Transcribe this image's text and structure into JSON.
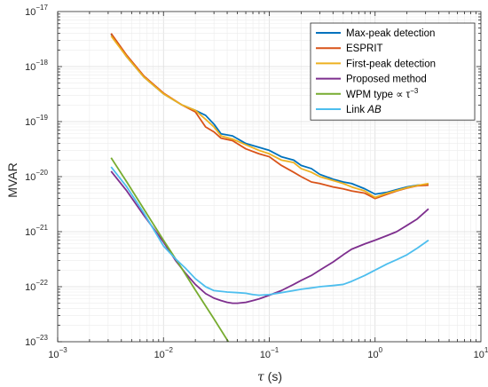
{
  "chart_data": {
    "type": "line",
    "xlabel": "τ (s)",
    "ylabel": "MVAR",
    "xscale": "log",
    "yscale": "log",
    "xlim": [
      0.001,
      10
    ],
    "ylim": [
      1e-23,
      1e-17
    ],
    "grid": true,
    "legend_position": "top-right",
    "x_ticks": [
      {
        "mantissa": "10",
        "exp": "−3",
        "value": 0.001
      },
      {
        "mantissa": "10",
        "exp": "−2",
        "value": 0.01
      },
      {
        "mantissa": "10",
        "exp": "−1",
        "value": 0.1
      },
      {
        "mantissa": "10",
        "exp": "0",
        "value": 1
      },
      {
        "mantissa": "10",
        "exp": "1",
        "value": 10
      }
    ],
    "y_ticks": [
      {
        "mantissa": "10",
        "exp": "−23",
        "value": 1e-23
      },
      {
        "mantissa": "10",
        "exp": "−22",
        "value": 1e-22
      },
      {
        "mantissa": "10",
        "exp": "−21",
        "value": 1e-21
      },
      {
        "mantissa": "10",
        "exp": "−20",
        "value": 1e-20
      },
      {
        "mantissa": "10",
        "exp": "−19",
        "value": 1e-19
      },
      {
        "mantissa": "10",
        "exp": "−18",
        "value": 1e-18
      },
      {
        "mantissa": "10",
        "exp": "−17",
        "value": 1e-17
      }
    ],
    "series": [
      {
        "name": "Max-peak detection",
        "color": "#0072BD",
        "points": [
          [
            0.0032,
            3.9e-18
          ],
          [
            0.0045,
            1.5e-18
          ],
          [
            0.0065,
            6.5e-19
          ],
          [
            0.01,
            3.2e-19
          ],
          [
            0.015,
            2e-19
          ],
          [
            0.02,
            1.6e-19
          ],
          [
            0.025,
            1.3e-19
          ],
          [
            0.03,
            9e-20
          ],
          [
            0.035,
            6e-20
          ],
          [
            0.045,
            5.5e-20
          ],
          [
            0.06,
            4e-20
          ],
          [
            0.08,
            3.4e-20
          ],
          [
            0.1,
            3e-20
          ],
          [
            0.13,
            2.3e-20
          ],
          [
            0.17,
            2e-20
          ],
          [
            0.2,
            1.6e-20
          ],
          [
            0.25,
            1.4e-20
          ],
          [
            0.3,
            1.1e-20
          ],
          [
            0.4,
            9e-21
          ],
          [
            0.5,
            8e-21
          ],
          [
            0.6,
            7.5e-21
          ],
          [
            0.8,
            6e-21
          ],
          [
            1.0,
            4.8e-21
          ],
          [
            1.3,
            5.2e-21
          ],
          [
            1.6,
            5.8e-21
          ],
          [
            2.0,
            6.5e-21
          ],
          [
            2.5,
            7e-21
          ],
          [
            3.2,
            7.2e-21
          ]
        ]
      },
      {
        "name": "ESPRIT",
        "color": "#D95319",
        "points": [
          [
            0.0032,
            4e-18
          ],
          [
            0.0045,
            1.6e-18
          ],
          [
            0.0065,
            6.8e-19
          ],
          [
            0.01,
            3.3e-19
          ],
          [
            0.015,
            2e-19
          ],
          [
            0.02,
            1.5e-19
          ],
          [
            0.025,
            8e-20
          ],
          [
            0.03,
            6.5e-20
          ],
          [
            0.035,
            5e-20
          ],
          [
            0.045,
            4.5e-20
          ],
          [
            0.06,
            3.2e-20
          ],
          [
            0.08,
            2.6e-20
          ],
          [
            0.1,
            2.3e-20
          ],
          [
            0.13,
            1.6e-20
          ],
          [
            0.17,
            1.2e-20
          ],
          [
            0.2,
            1e-20
          ],
          [
            0.25,
            8e-21
          ],
          [
            0.3,
            7.5e-21
          ],
          [
            0.4,
            6.5e-21
          ],
          [
            0.5,
            6e-21
          ],
          [
            0.6,
            5.5e-21
          ],
          [
            0.8,
            5e-21
          ],
          [
            1.0,
            4e-21
          ],
          [
            1.3,
            4.8e-21
          ],
          [
            1.6,
            5.5e-21
          ],
          [
            2.0,
            6.2e-21
          ],
          [
            2.5,
            6.8e-21
          ],
          [
            3.2,
            7e-21
          ]
        ]
      },
      {
        "name": "First-peak detection",
        "color": "#EDB120",
        "points": [
          [
            0.0032,
            3.6e-18
          ],
          [
            0.0045,
            1.5e-18
          ],
          [
            0.0065,
            6.5e-19
          ],
          [
            0.01,
            3.2e-19
          ],
          [
            0.015,
            2e-19
          ],
          [
            0.02,
            1.6e-19
          ],
          [
            0.025,
            1.1e-19
          ],
          [
            0.03,
            8e-20
          ],
          [
            0.035,
            5.5e-20
          ],
          [
            0.045,
            4.8e-20
          ],
          [
            0.06,
            3.8e-20
          ],
          [
            0.08,
            3e-20
          ],
          [
            0.1,
            2.6e-20
          ],
          [
            0.13,
            2e-20
          ],
          [
            0.17,
            1.8e-20
          ],
          [
            0.2,
            1.4e-20
          ],
          [
            0.25,
            1.2e-20
          ],
          [
            0.3,
            1e-20
          ],
          [
            0.4,
            8.5e-21
          ],
          [
            0.5,
            7.5e-21
          ],
          [
            0.6,
            6.5e-21
          ],
          [
            0.8,
            5.5e-21
          ],
          [
            1.0,
            4.2e-21
          ],
          [
            1.3,
            5e-21
          ],
          [
            1.6,
            5.6e-21
          ],
          [
            2.0,
            6.3e-21
          ],
          [
            2.5,
            6.9e-21
          ],
          [
            3.2,
            7.5e-21
          ]
        ]
      },
      {
        "name": "Proposed method",
        "color": "#7E2F8E",
        "points": [
          [
            0.0032,
            1.25e-20
          ],
          [
            0.0045,
            5.5e-21
          ],
          [
            0.0065,
            2e-21
          ],
          [
            0.01,
            6.5e-22
          ],
          [
            0.013,
            3e-22
          ],
          [
            0.016,
            1.8e-22
          ],
          [
            0.02,
            1.1e-22
          ],
          [
            0.025,
            7.5e-23
          ],
          [
            0.03,
            6.2e-23
          ],
          [
            0.035,
            5.6e-23
          ],
          [
            0.04,
            5.2e-23
          ],
          [
            0.045,
            5e-23
          ],
          [
            0.05,
            5e-23
          ],
          [
            0.06,
            5.2e-23
          ],
          [
            0.07,
            5.6e-23
          ],
          [
            0.08,
            6e-23
          ],
          [
            0.1,
            7e-23
          ],
          [
            0.13,
            8.5e-23
          ],
          [
            0.17,
            1.1e-22
          ],
          [
            0.2,
            1.3e-22
          ],
          [
            0.25,
            1.6e-22
          ],
          [
            0.3,
            2e-22
          ],
          [
            0.4,
            2.8e-22
          ],
          [
            0.5,
            3.8e-22
          ],
          [
            0.6,
            4.8e-22
          ],
          [
            0.8,
            6e-22
          ],
          [
            1.0,
            7e-22
          ],
          [
            1.3,
            8.5e-22
          ],
          [
            1.6,
            1e-21
          ],
          [
            2.0,
            1.3e-21
          ],
          [
            2.5,
            1.7e-21
          ],
          [
            3.2,
            2.6e-21
          ]
        ]
      },
      {
        "name": "WPM type ∝ τ⁻³",
        "label_main": "WPM type ∝ τ",
        "label_exp": "−3",
        "color": "#77AC30",
        "points": [
          [
            0.0032,
            2.2e-20
          ],
          [
            0.0045,
            8e-21
          ],
          [
            0.0065,
            2.6e-21
          ],
          [
            0.01,
            7e-22
          ],
          [
            0.015,
            2.1e-22
          ],
          [
            0.02,
            8.7e-23
          ],
          [
            0.03,
            2.6e-23
          ],
          [
            0.041,
            1e-23
          ]
        ]
      },
      {
        "name": "Link AB",
        "label_main": "Link ",
        "label_italic": "AB",
        "color": "#4DBEEE",
        "points": [
          [
            0.0032,
            1.5e-20
          ],
          [
            0.0045,
            6.5e-21
          ],
          [
            0.0065,
            2.2e-21
          ],
          [
            0.01,
            5.5e-22
          ],
          [
            0.013,
            3.2e-22
          ],
          [
            0.016,
            2.2e-22
          ],
          [
            0.02,
            1.4e-22
          ],
          [
            0.025,
            1e-22
          ],
          [
            0.03,
            8.5e-23
          ],
          [
            0.04,
            8e-23
          ],
          [
            0.05,
            7.8e-23
          ],
          [
            0.06,
            7.6e-23
          ],
          [
            0.07,
            7.2e-23
          ],
          [
            0.08,
            7e-23
          ],
          [
            0.1,
            7.2e-23
          ],
          [
            0.13,
            7.8e-23
          ],
          [
            0.17,
            8.5e-23
          ],
          [
            0.2,
            9e-23
          ],
          [
            0.25,
            9.5e-23
          ],
          [
            0.3,
            1e-22
          ],
          [
            0.4,
            1.05e-22
          ],
          [
            0.5,
            1.1e-22
          ],
          [
            0.6,
            1.25e-22
          ],
          [
            0.8,
            1.6e-22
          ],
          [
            1.0,
            2e-22
          ],
          [
            1.3,
            2.6e-22
          ],
          [
            1.6,
            3.1e-22
          ],
          [
            2.0,
            3.8e-22
          ],
          [
            2.5,
            5e-22
          ],
          [
            3.2,
            7e-22
          ]
        ]
      }
    ]
  }
}
